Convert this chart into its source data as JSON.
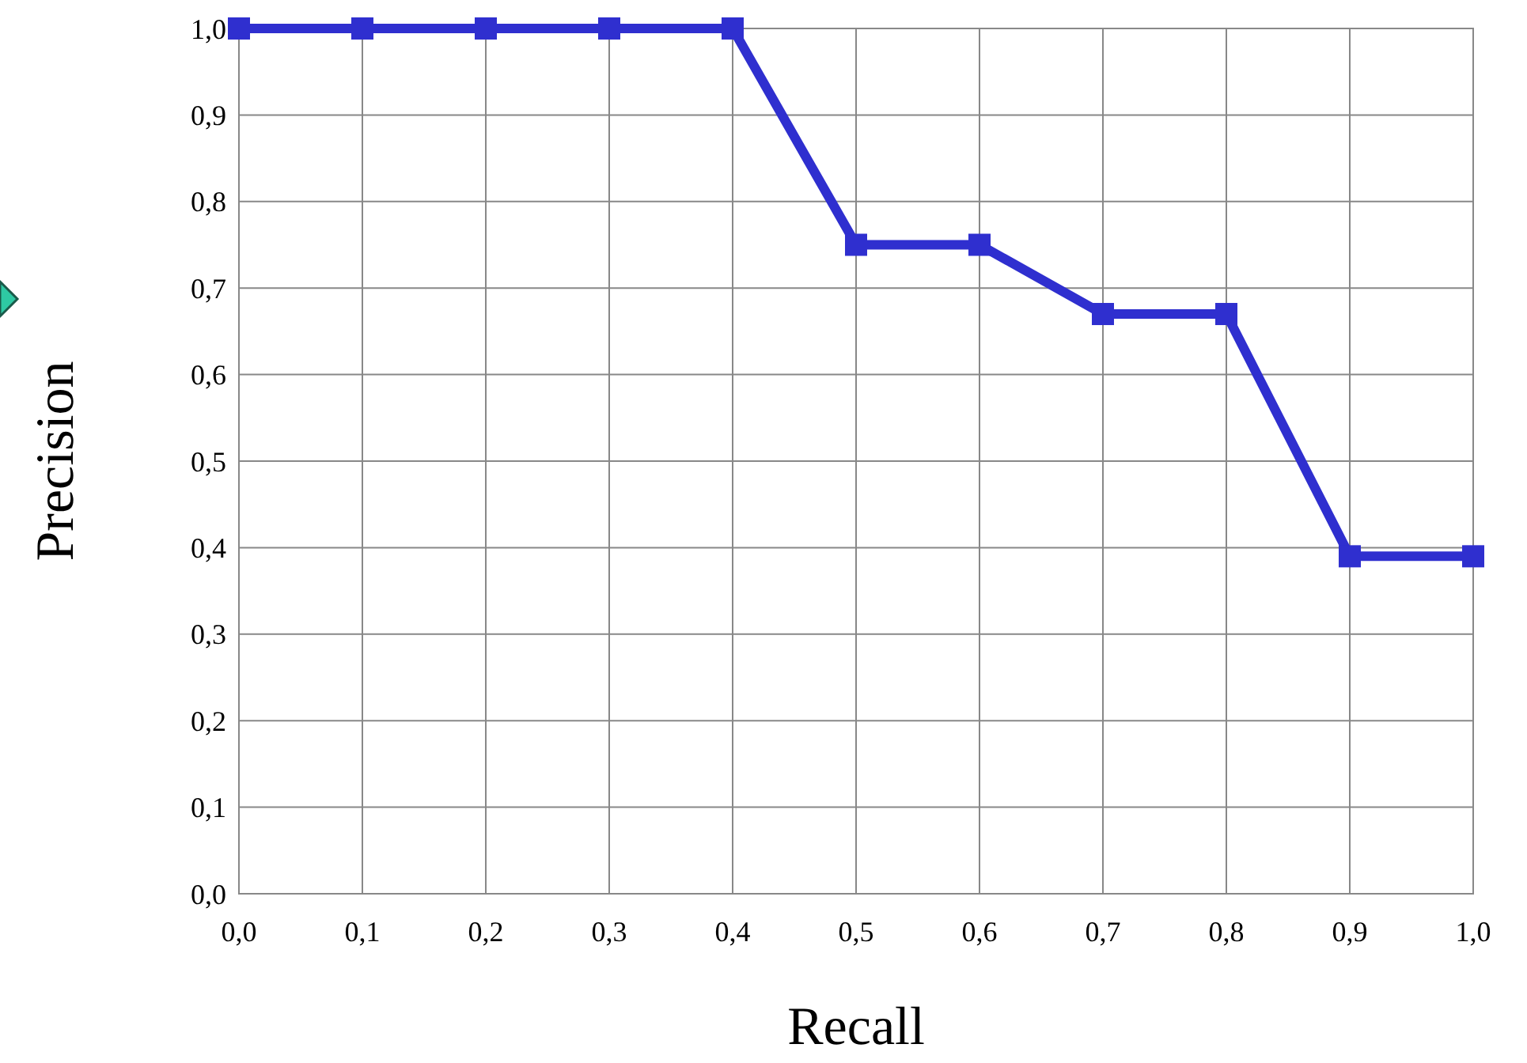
{
  "chart_data": {
    "type": "line",
    "xlabel": "Recall",
    "ylabel": "Precision",
    "x": [
      0,
      0.1,
      0.2,
      0.3,
      0.4,
      0.5,
      0.6,
      0.7,
      0.8,
      0.9,
      1.0
    ],
    "series": [
      {
        "color": "#2f2fcf",
        "values": [
          1,
          1,
          1,
          1,
          1,
          0.75,
          0.75,
          0.67,
          0.67,
          0.39,
          0.39
        ]
      }
    ],
    "xlim": [
      0,
      1
    ],
    "ylim": [
      0,
      1
    ],
    "xticks": [
      {
        "value": 0,
        "label": "0,0"
      },
      {
        "value": 0.1,
        "label": "0,1"
      },
      {
        "value": 0.2,
        "label": "0,2"
      },
      {
        "value": 0.3,
        "label": "0,3"
      },
      {
        "value": 0.4,
        "label": "0,4"
      },
      {
        "value": 0.5,
        "label": "0,5"
      },
      {
        "value": 0.6,
        "label": "0,6"
      },
      {
        "value": 0.7,
        "label": "0,7"
      },
      {
        "value": 0.8,
        "label": "0,8"
      },
      {
        "value": 0.9,
        "label": "0,9"
      },
      {
        "value": 1,
        "label": "1,0"
      }
    ],
    "yticks": [
      {
        "value": 0,
        "label": "0,0"
      },
      {
        "value": 0.1,
        "label": "0,1"
      },
      {
        "value": 0.2,
        "label": "0,2"
      },
      {
        "value": 0.3,
        "label": "0,3"
      },
      {
        "value": 0.4,
        "label": "0,4"
      },
      {
        "value": 0.5,
        "label": "0,5"
      },
      {
        "value": 0.6,
        "label": "0,6"
      },
      {
        "value": 0.7,
        "label": "0,7"
      },
      {
        "value": 0.8,
        "label": "0,8"
      },
      {
        "value": 0.9,
        "label": "0,9"
      },
      {
        "value": 1,
        "label": "1,0"
      }
    ],
    "grid": true,
    "marker": "square",
    "line_style": "solid"
  }
}
